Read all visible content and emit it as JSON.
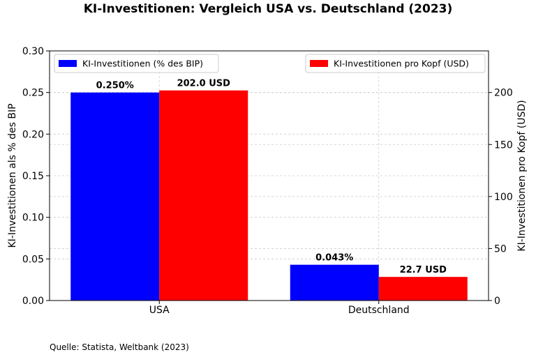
{
  "chart_data": {
    "type": "bar",
    "title": "KI-Investitionen: Vergleich USA vs. Deutschland (2023)",
    "categories": [
      "USA",
      "Deutschland"
    ],
    "series": [
      {
        "name": "KI-Investitionen (% des BIP)",
        "axis": "left",
        "color": "#0000ff",
        "values": [
          0.25,
          0.043
        ],
        "data_labels": [
          "0.250%",
          "0.043%"
        ]
      },
      {
        "name": "KI-Investitionen pro Kopf (USD)",
        "axis": "right",
        "color": "#ff0000",
        "values": [
          202.0,
          22.7
        ],
        "data_labels": [
          "202.0 USD",
          "22.7 USD"
        ]
      }
    ],
    "ylabel": "KI-Investitionen als % des BIP",
    "ylim": [
      0,
      0.3
    ],
    "yticks": [
      "0.00",
      "0.05",
      "0.10",
      "0.15",
      "0.20",
      "0.25",
      "0.30"
    ],
    "y2label": "KI-Investitionen pro Kopf (USD)",
    "y2lim": [
      0,
      240
    ],
    "y2ticks": [
      "0",
      "50",
      "100",
      "150",
      "200"
    ],
    "grid": true,
    "legend_left": "upper-left",
    "legend_right": "upper-right"
  },
  "source_note": "Quelle: Statista, Weltbank (2023)"
}
